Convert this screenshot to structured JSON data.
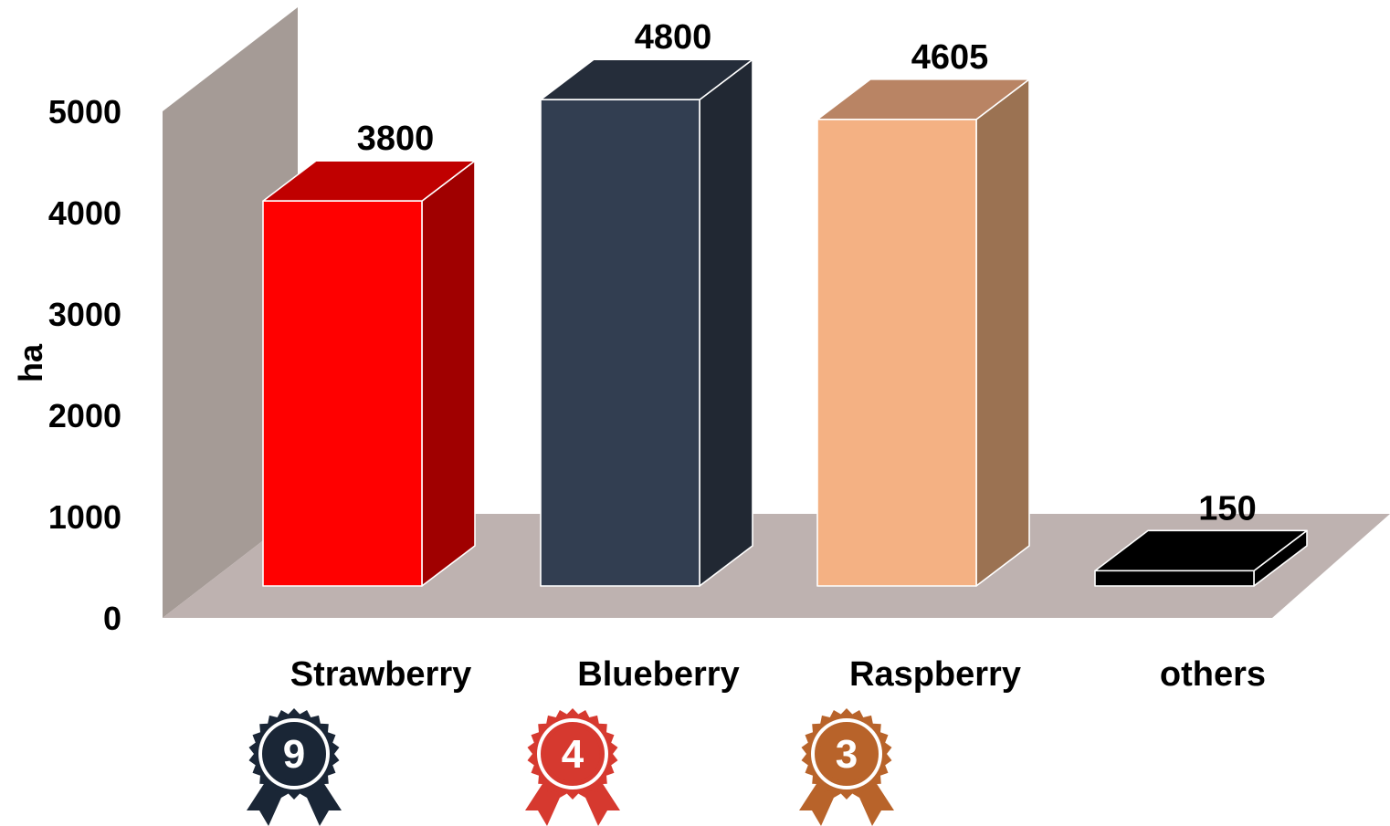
{
  "chart_data": {
    "type": "bar",
    "style": "3d",
    "categories": [
      "Strawberry",
      "Blueberry",
      "Raspberry",
      "others"
    ],
    "values": [
      3800,
      4800,
      4605,
      150
    ],
    "value_labels": [
      "3800",
      "4800",
      "4605",
      "150"
    ],
    "ylabel": "ha",
    "ylim": [
      0,
      5000
    ],
    "yticks": [
      "0",
      "1000",
      "2000",
      "3000",
      "4000",
      "5000"
    ],
    "grid": false,
    "legend": "none",
    "colors": [
      {
        "front": "#FF0000",
        "top": "#C00000",
        "side": "#A00000"
      },
      {
        "front": "#323E51",
        "top": "#252D3A",
        "side": "#212833"
      },
      {
        "front": "#F4B183",
        "top": "#B98464",
        "side": "#9B7252"
      },
      {
        "front": "#000000",
        "top": "#000000",
        "side": "#000000"
      }
    ],
    "wall_color": "#A59B96",
    "floor_color": "#BEB2B0",
    "badges": [
      {
        "category": "Strawberry",
        "number": "9",
        "icon": "rosette-award-icon",
        "color": "#1A2636"
      },
      {
        "category": "Blueberry",
        "number": "4",
        "icon": "rosette-award-icon",
        "color": "#D6392F"
      },
      {
        "category": "Raspberry",
        "number": "3",
        "icon": "rosette-award-icon",
        "color": "#B8632A"
      }
    ]
  }
}
